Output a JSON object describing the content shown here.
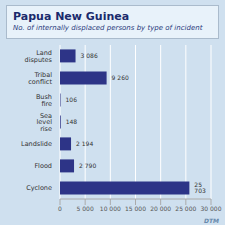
{
  "chart_data": {
    "type": "bar",
    "title": "Papua New Guinea",
    "subtitle": "No. of internally displaced persons by type of incident",
    "orientation": "horizontal",
    "categories": [
      "Land disputes",
      "Tribal conflict",
      "Bush fire",
      "Sea level rise",
      "Landslide",
      "Flood",
      "Cyclone"
    ],
    "values": [
      3086,
      9260,
      106,
      148,
      2194,
      2790,
      25703
    ],
    "value_labels": [
      "3 086",
      "9 260",
      "106",
      "148",
      "2 194",
      "2 790",
      "25 703"
    ],
    "data_labels": true,
    "color": "#2d3487",
    "xlim": [
      0,
      30000
    ],
    "xticks": [
      0,
      {
        "value": 5000,
        "label": "5 000"
      },
      {
        "value": 10000,
        "label": "10 000"
      },
      {
        "value": 15000,
        "label": "15 000"
      },
      {
        "value": 20000,
        "label": "20 000"
      },
      {
        "value": 25000,
        "label": "25 000"
      },
      {
        "value": 30000,
        "label": "30 000"
      }
    ],
    "grid": true,
    "annotations": [
      "DTM"
    ]
  }
}
